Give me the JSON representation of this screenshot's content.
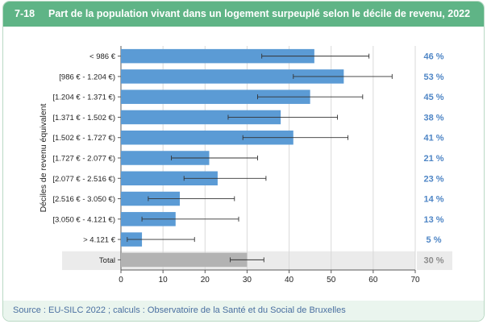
{
  "header": {
    "figure_number": "7-18",
    "title": "Part de la population vivant dans un logement surpeuplé selon le décile de revenu, 2022"
  },
  "source": "Source : EU-SILC 2022 ; calculs : Observatoire de la Santé et du Social de Bruxelles",
  "colors": {
    "bar": "#5b9bd5",
    "total_bar": "#b3b3b3",
    "total_band": "#ebebeb",
    "label_blue": "#4f86c6",
    "label_gray": "#8c8c8c",
    "header": "#5fb486"
  },
  "chart_data": {
    "type": "bar",
    "orientation": "horizontal",
    "ylabel": "Déciles de revenu équivalent",
    "xlabel": "",
    "xlim": [
      0,
      70
    ],
    "xticks": [
      "0",
      "10",
      "20",
      "30",
      "40",
      "50",
      "60",
      "70"
    ],
    "grid": true,
    "categories": [
      "< 986 €",
      "[986 € - 1.204 €)",
      "[1.204 € - 1.371 €)",
      "[1.371 € - 1.502 €)",
      "[1.502 € - 1.727 €)",
      "[1.727 € - 2.077 €)",
      "[2.077 € - 2.516 €)",
      "[2.516 € - 3.050 €)",
      "[3.050 € - 4.121 €)",
      "> 4.121 €",
      "Total"
    ],
    "values": [
      46,
      53,
      45,
      38,
      41,
      21,
      23,
      14,
      13,
      5,
      30
    ],
    "error_low": [
      33.5,
      41,
      32.5,
      25.5,
      29,
      12,
      15,
      6.5,
      5,
      1.5,
      26
    ],
    "error_high": [
      59,
      64.5,
      57.5,
      51.5,
      54,
      32.5,
      34.5,
      27,
      28,
      17.5,
      34
    ],
    "value_labels": [
      "46 %",
      "53 %",
      "45 %",
      "38 %",
      "41 %",
      "21 %",
      "23 %",
      "14 %",
      "13 %",
      "5 %",
      "30 %"
    ]
  }
}
